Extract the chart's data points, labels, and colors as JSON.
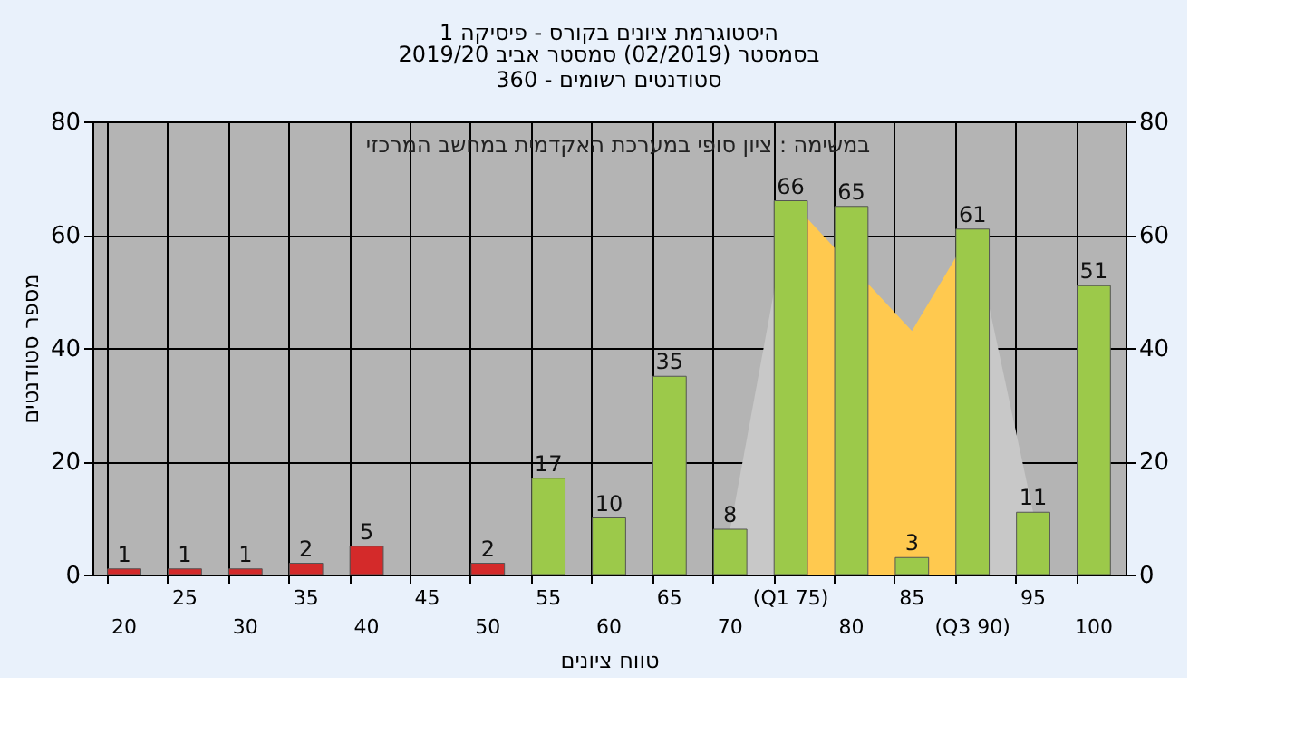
{
  "chart_data": {
    "type": "bar",
    "title": "היסטוגרמת ציונים בקורס - פיסיקה 1",
    "subtitle": "בסמסטר  (02/2019)  סמסטר אביב 2019/20\nסטודנטים רשומים - 360",
    "xlabel": "טווח ציונים",
    "ylabel": "מספר סטודנטים",
    "annotations": [
      "במשימה : ציון סופי במערכת האקדמית במחשב המרכזי"
    ],
    "categories": [
      "20",
      "25",
      "30",
      "35",
      "40",
      "45",
      "50",
      "55",
      "60",
      "65",
      "70",
      "(Q1 75)",
      "80",
      "85",
      "(Q3 90)",
      "95",
      "100"
    ],
    "series": [
      {
        "type": "area",
        "color": "#c8c8c8",
        "values": [
          null,
          null,
          null,
          null,
          null,
          null,
          null,
          null,
          null,
          null,
          8,
          66,
          null,
          null,
          null,
          null,
          null
        ]
      },
      {
        "type": "area",
        "color": "#c8c8c8",
        "values": [
          null,
          null,
          null,
          null,
          null,
          null,
          null,
          null,
          null,
          null,
          null,
          null,
          null,
          null,
          61,
          11,
          null
        ]
      },
      {
        "type": "area",
        "color": "#ffc94f",
        "values": [
          null,
          null,
          null,
          null,
          null,
          null,
          null,
          null,
          null,
          null,
          null,
          66,
          null,
          43,
          61,
          null,
          null
        ]
      },
      {
        "value_labels": [
          "1",
          "1",
          "1",
          "2",
          "5",
          null,
          "2",
          "17",
          "10",
          "35",
          "8",
          "66",
          "65",
          "3",
          "61",
          "11",
          "51"
        ],
        "colors": [
          "#d42a2a",
          "#d42a2a",
          "#d42a2a",
          "#d42a2a",
          "#d42a2a",
          "#d42a2a",
          "#d42a2a",
          "#9cc94a",
          "#9cc94a",
          "#9cc94a",
          "#9cc94a",
          "#9cc94a",
          "#9cc94a",
          "#9cc94a",
          "#9cc94a",
          "#9cc94a",
          "#9cc94a"
        ],
        "values": [
          1,
          1,
          1,
          2,
          5,
          null,
          2,
          17,
          10,
          35,
          8,
          66,
          65,
          3,
          61,
          11,
          51
        ]
      }
    ],
    "ylim": [
      0,
      80
    ],
    "yticks": [
      0,
      20,
      40,
      60,
      80
    ],
    "y2lim": [
      0,
      80
    ],
    "y2ticks": [
      0,
      20,
      40,
      60,
      80
    ],
    "grid": true
  }
}
